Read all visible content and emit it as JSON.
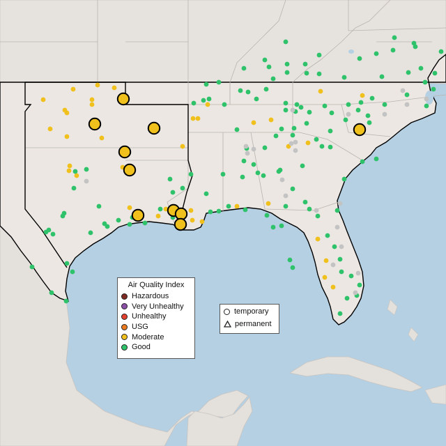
{
  "colors": {
    "ocean": "#b5d0e3",
    "land_us": "#ece7e2",
    "land_other": "#e4e1dd",
    "state_line": "#b9b4af",
    "coast": "#000000",
    "hazardous": "#7e2a23",
    "very_unhealthy": "#8c4fa8",
    "unhealthy": "#e4402e",
    "usg": "#e97a1f",
    "moderate": "#f0c01c",
    "good": "#2ec36a",
    "no_data": "#c3c3c3"
  },
  "aqi_legend": {
    "title": "Air Quality Index",
    "items": [
      {
        "label": "Hazardous",
        "color": "#7e2a23"
      },
      {
        "label": "Very Unhealthy",
        "color": "#8c4fa8"
      },
      {
        "label": "Unhealthy",
        "color": "#e4402e"
      },
      {
        "label": "USG",
        "color": "#e97a1f"
      },
      {
        "label": "Moderate",
        "color": "#f0c01c"
      },
      {
        "label": "Good",
        "color": "#2ec36a"
      }
    ]
  },
  "type_legend": {
    "items": [
      {
        "label": "temporary",
        "shape": "circle"
      },
      {
        "label": "permanent",
        "shape": "triangle"
      }
    ]
  }
}
